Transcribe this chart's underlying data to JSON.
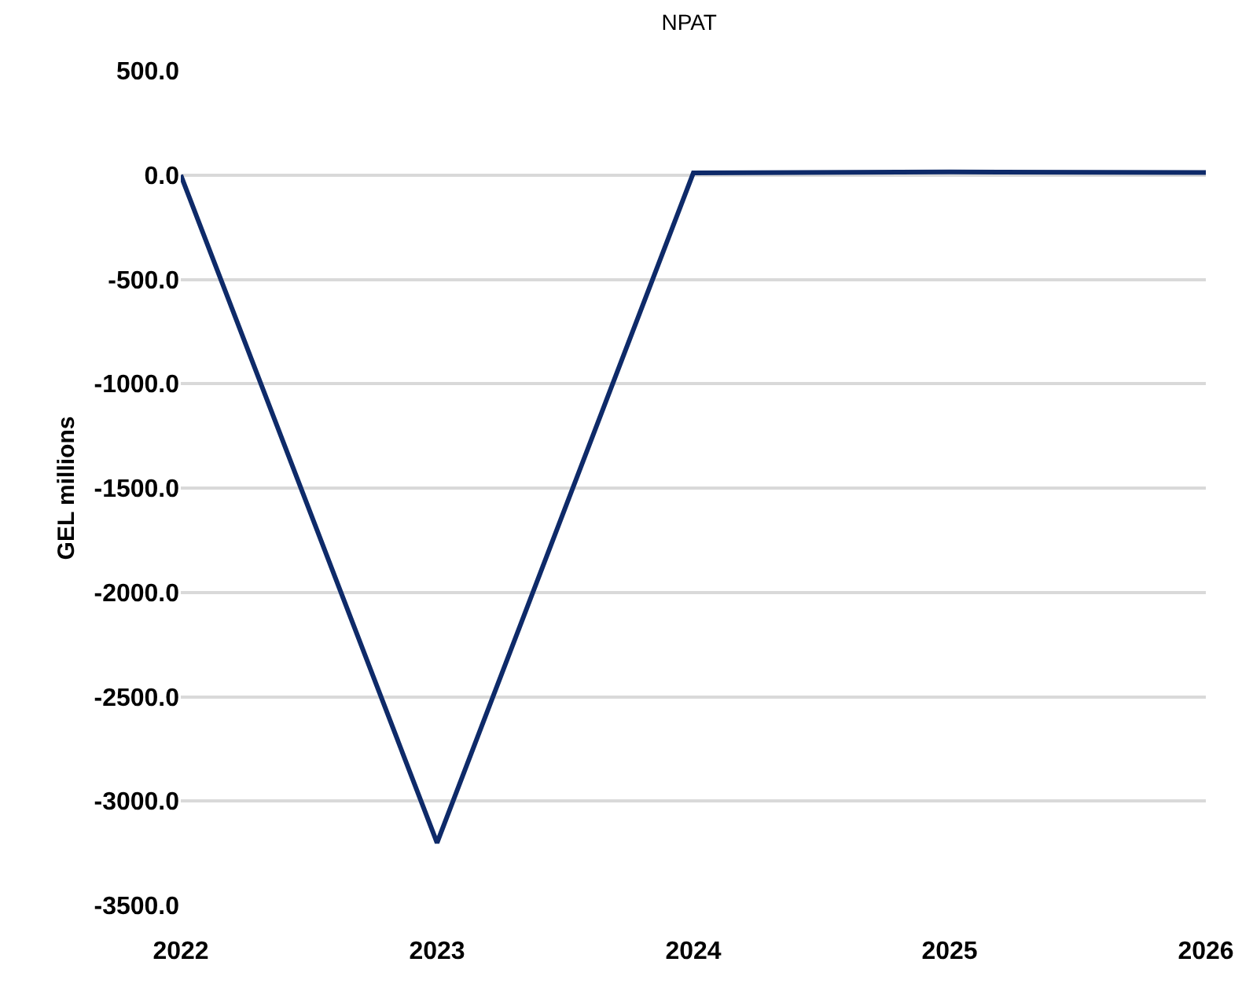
{
  "chart_data": {
    "type": "line",
    "title": "NPAT",
    "ylabel": "GEL millions",
    "categories": [
      "2022",
      "2023",
      "2024",
      "2025",
      "2026"
    ],
    "series": [
      {
        "color": "#0e2a69",
        "values": [
          0,
          -3200,
          10,
          15,
          12
        ]
      }
    ],
    "ylim": [
      -3500,
      500
    ],
    "yticks": [
      {
        "value": -3500,
        "label": "-3500.0"
      },
      {
        "value": -3000,
        "label": "-3000.0"
      },
      {
        "value": -2500,
        "label": "-2500.0"
      },
      {
        "value": -2000,
        "label": "-2000.0"
      },
      {
        "value": -1500,
        "label": "-1500.0"
      },
      {
        "value": -1000,
        "label": "-1000.0"
      },
      {
        "value": -500,
        "label": "-500.0"
      },
      {
        "value": 0,
        "label": "0.0"
      },
      {
        "value": 500,
        "label": "500.0"
      }
    ],
    "grid": "y",
    "marker": "none",
    "line_style": "solid"
  }
}
